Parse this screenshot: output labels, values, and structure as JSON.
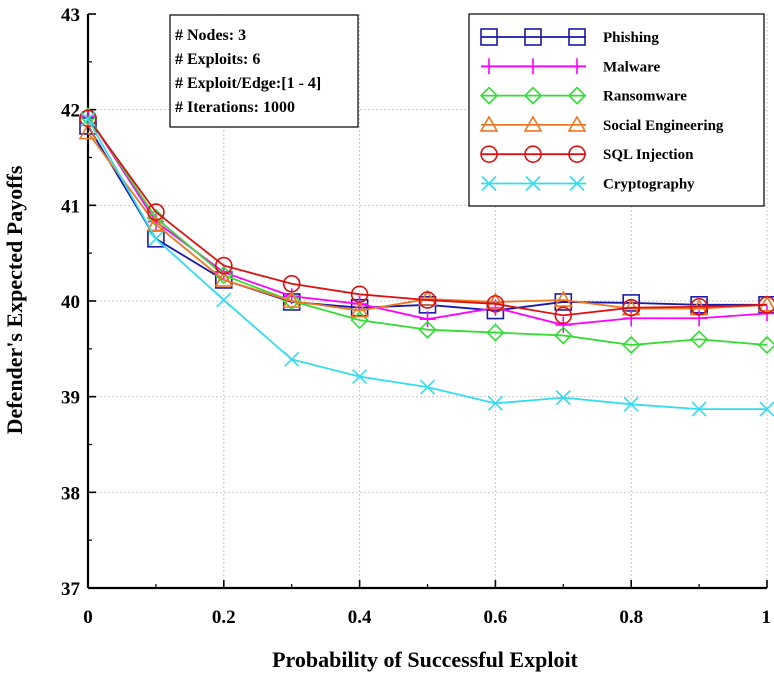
{
  "chart_data": {
    "type": "line",
    "xlabel": "Probability of Successful Exploit",
    "ylabel": "Defender's Expected Payoffs",
    "xlim": [
      0,
      1
    ],
    "ylim": [
      37,
      43
    ],
    "x_ticks": [
      0,
      0.2,
      0.4,
      0.6,
      0.8,
      1
    ],
    "x_tick_labels": [
      "0",
      "0.2",
      "0.4",
      "0.6",
      "0.8",
      "1"
    ],
    "y_ticks": [
      37,
      38,
      39,
      40,
      41,
      42,
      43
    ],
    "y_tick_labels": [
      "37",
      "38",
      "39",
      "40",
      "41",
      "42",
      "43"
    ],
    "grid": true,
    "legend_position": "top-right",
    "annotation": [
      "# Nodes: 3",
      "# Exploits: 6",
      "# Exploit/Edge:[1 - 4]",
      "# Iterations: 1000"
    ],
    "x": [
      0,
      0.1,
      0.2,
      0.3,
      0.4,
      0.5,
      0.6,
      0.7,
      0.8,
      0.9,
      1.0
    ],
    "series": [
      {
        "name": "Phishing",
        "color": "#1a1aa8",
        "marker": "square",
        "values": [
          41.83,
          40.65,
          40.22,
          39.99,
          39.93,
          39.96,
          39.9,
          39.99,
          39.98,
          39.96,
          39.96
        ]
      },
      {
        "name": "Malware",
        "color": "#ff00ff",
        "marker": "plus",
        "values": [
          41.93,
          40.83,
          40.3,
          40.05,
          39.97,
          39.81,
          39.93,
          39.75,
          39.82,
          39.82,
          39.87
        ]
      },
      {
        "name": "Ransomware",
        "color": "#33dd33",
        "marker": "diamond",
        "values": [
          41.93,
          40.87,
          40.27,
          40.0,
          39.8,
          39.7,
          39.67,
          39.64,
          39.54,
          39.6,
          39.54
        ]
      },
      {
        "name": "Social Engineering",
        "color": "#ee7722",
        "marker": "triangle",
        "values": [
          41.76,
          40.8,
          40.22,
          40.0,
          39.9,
          40.02,
          39.99,
          40.01,
          39.92,
          39.92,
          39.96
        ]
      },
      {
        "name": "SQL Injection",
        "color": "#dd1111",
        "marker": "circle",
        "values": [
          41.91,
          40.93,
          40.37,
          40.18,
          40.07,
          40.01,
          39.97,
          39.85,
          39.93,
          39.94,
          39.96
        ]
      },
      {
        "name": "Cryptography",
        "color": "#33ddee",
        "marker": "x",
        "values": [
          41.9,
          40.65,
          40.01,
          39.39,
          39.21,
          39.1,
          38.93,
          38.99,
          38.92,
          38.87,
          38.87
        ]
      }
    ]
  }
}
